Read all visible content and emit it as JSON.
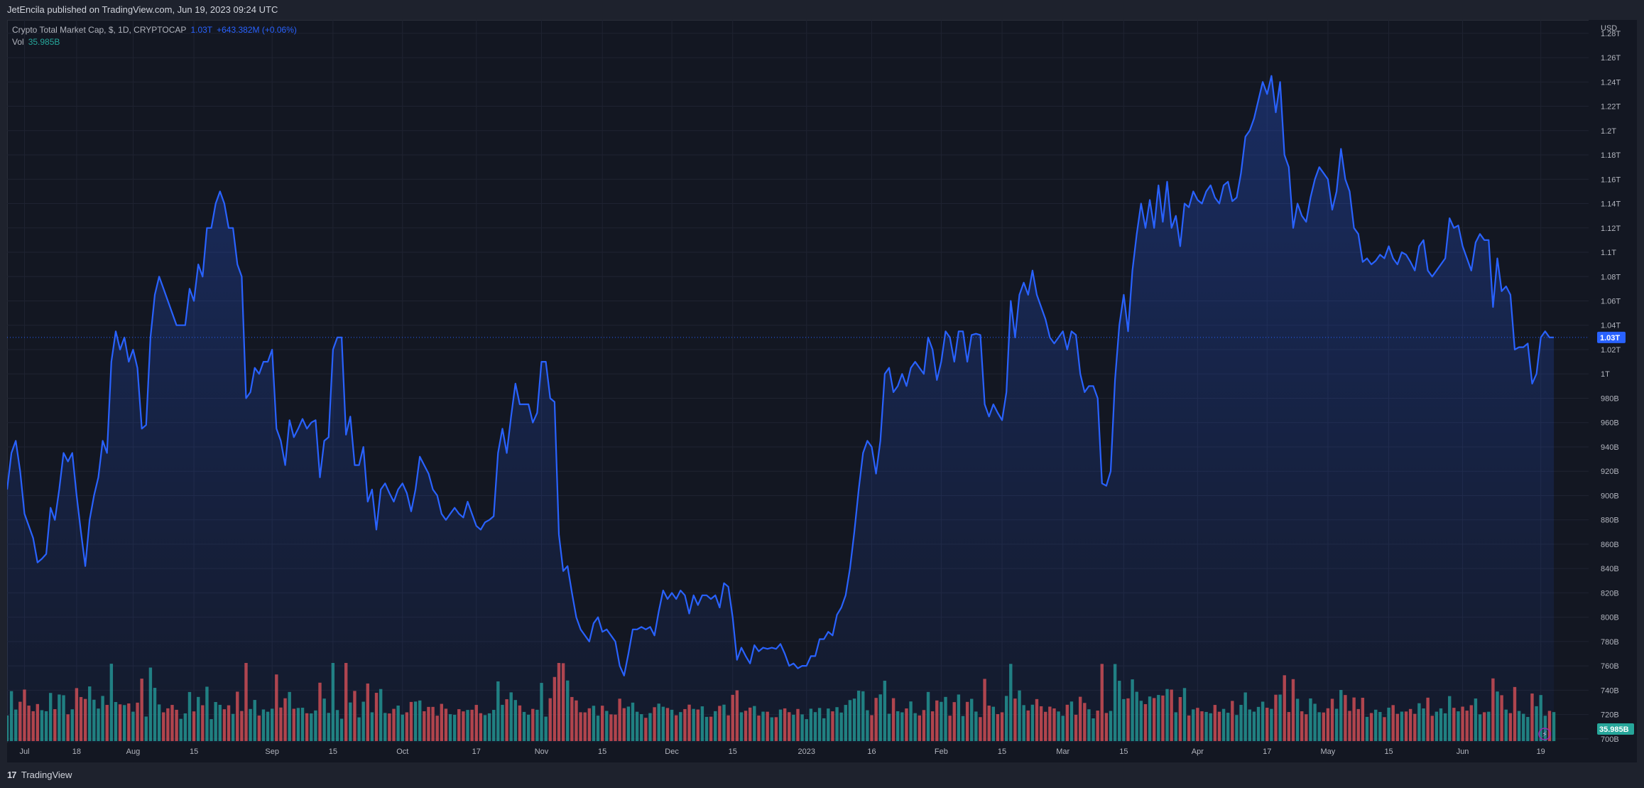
{
  "header": {
    "published": "JetEncila published on TradingView.com, Jun 19, 2023 09:24 UTC"
  },
  "legend": {
    "symbol": "Crypto Total Market Cap, $, 1D, CRYPTOCAP",
    "price": "1.03T",
    "change": "+643.382M (+0.06%)",
    "vol_label": "Vol",
    "vol_value": "35.985B"
  },
  "footer": {
    "brand": "TradingView",
    "logo_glyph": "17"
  },
  "colors": {
    "line": "#2962ff",
    "area_top": "#2962ff",
    "vol_up": "#26a69a",
    "vol_down": "#ef5350",
    "grid": "#1f2331",
    "text": "#b2b5be",
    "price_tag": "#2962ff",
    "vol_tag": "#26a69a"
  },
  "chart_data": {
    "type": "area",
    "currency_label": "USD",
    "y_ticks": [
      "1.28T",
      "1.26T",
      "1.24T",
      "1.22T",
      "1.2T",
      "1.18T",
      "1.16T",
      "1.14T",
      "1.12T",
      "1.1T",
      "1.08T",
      "1.06T",
      "1.04T",
      "1.02T",
      "1T",
      "980B",
      "960B",
      "940B",
      "920B",
      "900B",
      "880B",
      "860B",
      "840B",
      "820B",
      "800B",
      "780B",
      "760B",
      "740B",
      "720B",
      "700B"
    ],
    "y_tick_values": [
      1280,
      1260,
      1240,
      1220,
      1200,
      1180,
      1160,
      1140,
      1120,
      1100,
      1080,
      1060,
      1040,
      1020,
      1000,
      980,
      960,
      940,
      920,
      900,
      880,
      860,
      840,
      820,
      800,
      780,
      760,
      740,
      720,
      700
    ],
    "y_unit": "B",
    "ylim": [
      697,
      1291
    ],
    "x_labels": [
      {
        "label": "Jul",
        "day": 4
      },
      {
        "label": "18",
        "day": 16
      },
      {
        "label": "Aug",
        "day": 29
      },
      {
        "label": "15",
        "day": 43
      },
      {
        "label": "Sep",
        "day": 61
      },
      {
        "label": "15",
        "day": 75
      },
      {
        "label": "Oct",
        "day": 91
      },
      {
        "label": "17",
        "day": 108
      },
      {
        "label": "Nov",
        "day": 123
      },
      {
        "label": "15",
        "day": 137
      },
      {
        "label": "Dec",
        "day": 153
      },
      {
        "label": "15",
        "day": 167
      },
      {
        "label": "2023",
        "day": 184
      },
      {
        "label": "16",
        "day": 199
      },
      {
        "label": "Feb",
        "day": 215
      },
      {
        "label": "15",
        "day": 229
      },
      {
        "label": "Mar",
        "day": 243
      },
      {
        "label": "15",
        "day": 257
      },
      {
        "label": "Apr",
        "day": 274
      },
      {
        "label": "17",
        "day": 290
      },
      {
        "label": "May",
        "day": 304
      },
      {
        "label": "15",
        "day": 318
      },
      {
        "label": "Jun",
        "day": 335
      },
      {
        "label": "19",
        "day": 353
      }
    ],
    "x_range": [
      0,
      364
    ],
    "price_points": [
      [
        0,
        905
      ],
      [
        1,
        935
      ],
      [
        2,
        945
      ],
      [
        3,
        920
      ],
      [
        4,
        885
      ],
      [
        5,
        875
      ],
      [
        6,
        865
      ],
      [
        7,
        845
      ],
      [
        8,
        848
      ],
      [
        9,
        852
      ],
      [
        10,
        890
      ],
      [
        11,
        880
      ],
      [
        12,
        905
      ],
      [
        13,
        935
      ],
      [
        14,
        928
      ],
      [
        15,
        935
      ],
      [
        16,
        900
      ],
      [
        17,
        870
      ],
      [
        18,
        842
      ],
      [
        19,
        880
      ],
      [
        20,
        900
      ],
      [
        21,
        915
      ],
      [
        22,
        945
      ],
      [
        23,
        935
      ],
      [
        24,
        1010
      ],
      [
        25,
        1035
      ],
      [
        26,
        1020
      ],
      [
        27,
        1030
      ],
      [
        28,
        1010
      ],
      [
        29,
        1020
      ],
      [
        30,
        1005
      ],
      [
        31,
        955
      ],
      [
        32,
        958
      ],
      [
        33,
        1030
      ],
      [
        34,
        1065
      ],
      [
        35,
        1080
      ],
      [
        36,
        1070
      ],
      [
        37,
        1060
      ],
      [
        38,
        1050
      ],
      [
        39,
        1040
      ],
      [
        40,
        1040
      ],
      [
        41,
        1040
      ],
      [
        42,
        1070
      ],
      [
        43,
        1060
      ],
      [
        44,
        1090
      ],
      [
        45,
        1080
      ],
      [
        46,
        1120
      ],
      [
        47,
        1120
      ],
      [
        48,
        1140
      ],
      [
        49,
        1150
      ],
      [
        50,
        1140
      ],
      [
        51,
        1120
      ],
      [
        52,
        1120
      ],
      [
        53,
        1090
      ],
      [
        54,
        1080
      ],
      [
        55,
        980
      ],
      [
        56,
        985
      ],
      [
        57,
        1005
      ],
      [
        58,
        1000
      ],
      [
        59,
        1010
      ],
      [
        60,
        1010
      ],
      [
        61,
        1020
      ],
      [
        62,
        955
      ],
      [
        63,
        945
      ],
      [
        64,
        925
      ],
      [
        65,
        962
      ],
      [
        66,
        948
      ],
      [
        67,
        955
      ],
      [
        68,
        963
      ],
      [
        69,
        955
      ],
      [
        70,
        960
      ],
      [
        71,
        962
      ],
      [
        72,
        915
      ],
      [
        73,
        945
      ],
      [
        74,
        948
      ],
      [
        75,
        1020
      ],
      [
        76,
        1030
      ],
      [
        77,
        1030
      ],
      [
        78,
        950
      ],
      [
        79,
        965
      ],
      [
        80,
        925
      ],
      [
        81,
        925
      ],
      [
        82,
        940
      ],
      [
        83,
        895
      ],
      [
        84,
        905
      ],
      [
        85,
        872
      ],
      [
        86,
        905
      ],
      [
        87,
        910
      ],
      [
        88,
        902
      ],
      [
        89,
        895
      ],
      [
        90,
        905
      ],
      [
        91,
        910
      ],
      [
        92,
        902
      ],
      [
        93,
        887
      ],
      [
        94,
        905
      ],
      [
        95,
        932
      ],
      [
        96,
        925
      ],
      [
        97,
        918
      ],
      [
        98,
        905
      ],
      [
        99,
        900
      ],
      [
        100,
        885
      ],
      [
        101,
        880
      ],
      [
        102,
        885
      ],
      [
        103,
        890
      ],
      [
        104,
        885
      ],
      [
        105,
        882
      ],
      [
        106,
        895
      ],
      [
        107,
        885
      ],
      [
        108,
        875
      ],
      [
        109,
        872
      ],
      [
        110,
        878
      ],
      [
        111,
        880
      ],
      [
        112,
        883
      ],
      [
        113,
        935
      ],
      [
        114,
        955
      ],
      [
        115,
        935
      ],
      [
        116,
        965
      ],
      [
        117,
        992
      ],
      [
        118,
        975
      ],
      [
        119,
        975
      ],
      [
        120,
        975
      ],
      [
        121,
        960
      ],
      [
        122,
        968
      ],
      [
        123,
        1010
      ],
      [
        124,
        1010
      ],
      [
        125,
        980
      ],
      [
        126,
        977
      ],
      [
        127,
        868
      ],
      [
        128,
        838
      ],
      [
        129,
        842
      ],
      [
        130,
        820
      ],
      [
        131,
        800
      ],
      [
        132,
        790
      ],
      [
        133,
        785
      ],
      [
        134,
        780
      ],
      [
        135,
        795
      ],
      [
        136,
        800
      ],
      [
        137,
        788
      ],
      [
        138,
        790
      ],
      [
        139,
        785
      ],
      [
        140,
        780
      ],
      [
        141,
        760
      ],
      [
        142,
        752
      ],
      [
        143,
        770
      ],
      [
        144,
        790
      ],
      [
        145,
        790
      ],
      [
        146,
        792
      ],
      [
        147,
        790
      ],
      [
        148,
        792
      ],
      [
        149,
        785
      ],
      [
        150,
        805
      ],
      [
        151,
        822
      ],
      [
        152,
        815
      ],
      [
        153,
        820
      ],
      [
        154,
        815
      ],
      [
        155,
        822
      ],
      [
        156,
        818
      ],
      [
        157,
        803
      ],
      [
        158,
        818
      ],
      [
        159,
        810
      ],
      [
        160,
        818
      ],
      [
        161,
        818
      ],
      [
        162,
        815
      ],
      [
        163,
        818
      ],
      [
        164,
        808
      ],
      [
        165,
        828
      ],
      [
        166,
        825
      ],
      [
        167,
        800
      ],
      [
        168,
        765
      ],
      [
        169,
        775
      ],
      [
        170,
        768
      ],
      [
        171,
        762
      ],
      [
        172,
        777
      ],
      [
        173,
        772
      ],
      [
        174,
        775
      ],
      [
        175,
        774
      ],
      [
        176,
        775
      ],
      [
        177,
        774
      ],
      [
        178,
        778
      ],
      [
        179,
        770
      ],
      [
        180,
        760
      ],
      [
        181,
        762
      ],
      [
        182,
        758
      ],
      [
        183,
        760
      ],
      [
        184,
        760
      ],
      [
        185,
        768
      ],
      [
        186,
        768
      ],
      [
        187,
        782
      ],
      [
        188,
        782
      ],
      [
        189,
        788
      ],
      [
        190,
        785
      ],
      [
        191,
        802
      ],
      [
        192,
        808
      ],
      [
        193,
        818
      ],
      [
        194,
        840
      ],
      [
        195,
        870
      ],
      [
        196,
        905
      ],
      [
        197,
        935
      ],
      [
        198,
        945
      ],
      [
        199,
        940
      ],
      [
        200,
        918
      ],
      [
        201,
        945
      ],
      [
        202,
        1000
      ],
      [
        203,
        1005
      ],
      [
        204,
        985
      ],
      [
        205,
        990
      ],
      [
        206,
        1000
      ],
      [
        207,
        990
      ],
      [
        208,
        1005
      ],
      [
        209,
        1010
      ],
      [
        210,
        1005
      ],
      [
        211,
        1000
      ],
      [
        212,
        1030
      ],
      [
        213,
        1020
      ],
      [
        214,
        995
      ],
      [
        215,
        1010
      ],
      [
        216,
        1035
      ],
      [
        217,
        1030
      ],
      [
        218,
        1010
      ],
      [
        219,
        1035
      ],
      [
        220,
        1035
      ],
      [
        221,
        1010
      ],
      [
        222,
        1032
      ],
      [
        223,
        1033
      ],
      [
        224,
        1032
      ],
      [
        225,
        975
      ],
      [
        226,
        965
      ],
      [
        227,
        975
      ],
      [
        228,
        968
      ],
      [
        229,
        962
      ],
      [
        230,
        985
      ],
      [
        231,
        1060
      ],
      [
        232,
        1030
      ],
      [
        233,
        1065
      ],
      [
        234,
        1075
      ],
      [
        235,
        1065
      ],
      [
        236,
        1085
      ],
      [
        237,
        1065
      ],
      [
        238,
        1055
      ],
      [
        239,
        1045
      ],
      [
        240,
        1030
      ],
      [
        241,
        1025
      ],
      [
        242,
        1030
      ],
      [
        243,
        1035
      ],
      [
        244,
        1020
      ],
      [
        245,
        1035
      ],
      [
        246,
        1032
      ],
      [
        247,
        1000
      ],
      [
        248,
        985
      ],
      [
        249,
        990
      ],
      [
        250,
        990
      ],
      [
        251,
        980
      ],
      [
        252,
        910
      ],
      [
        253,
        908
      ],
      [
        254,
        920
      ],
      [
        255,
        995
      ],
      [
        256,
        1040
      ],
      [
        257,
        1065
      ],
      [
        258,
        1035
      ],
      [
        259,
        1085
      ],
      [
        260,
        1115
      ],
      [
        261,
        1140
      ],
      [
        262,
        1120
      ],
      [
        263,
        1143
      ],
      [
        264,
        1120
      ],
      [
        265,
        1155
      ],
      [
        266,
        1125
      ],
      [
        267,
        1158
      ],
      [
        268,
        1120
      ],
      [
        269,
        1130
      ],
      [
        270,
        1105
      ],
      [
        271,
        1140
      ],
      [
        272,
        1137
      ],
      [
        273,
        1150
      ],
      [
        274,
        1143
      ],
      [
        275,
        1140
      ],
      [
        276,
        1150
      ],
      [
        277,
        1155
      ],
      [
        278,
        1145
      ],
      [
        279,
        1140
      ],
      [
        280,
        1155
      ],
      [
        281,
        1158
      ],
      [
        282,
        1142
      ],
      [
        283,
        1145
      ],
      [
        284,
        1165
      ],
      [
        285,
        1195
      ],
      [
        286,
        1200
      ],
      [
        287,
        1210
      ],
      [
        288,
        1225
      ],
      [
        289,
        1240
      ],
      [
        290,
        1230
      ],
      [
        291,
        1245
      ],
      [
        292,
        1215
      ],
      [
        293,
        1240
      ],
      [
        294,
        1180
      ],
      [
        295,
        1170
      ],
      [
        296,
        1120
      ],
      [
        297,
        1140
      ],
      [
        298,
        1130
      ],
      [
        299,
        1125
      ],
      [
        300,
        1145
      ],
      [
        301,
        1160
      ],
      [
        302,
        1170
      ],
      [
        303,
        1165
      ],
      [
        304,
        1160
      ],
      [
        305,
        1135
      ],
      [
        306,
        1150
      ],
      [
        307,
        1185
      ],
      [
        308,
        1160
      ],
      [
        309,
        1150
      ],
      [
        310,
        1120
      ],
      [
        311,
        1115
      ],
      [
        312,
        1092
      ],
      [
        313,
        1095
      ],
      [
        314,
        1090
      ],
      [
        315,
        1093
      ],
      [
        316,
        1098
      ],
      [
        317,
        1095
      ],
      [
        318,
        1105
      ],
      [
        319,
        1095
      ],
      [
        320,
        1090
      ],
      [
        321,
        1100
      ],
      [
        322,
        1098
      ],
      [
        323,
        1092
      ],
      [
        324,
        1085
      ],
      [
        325,
        1105
      ],
      [
        326,
        1110
      ],
      [
        327,
        1085
      ],
      [
        328,
        1080
      ],
      [
        329,
        1085
      ],
      [
        330,
        1090
      ],
      [
        331,
        1095
      ],
      [
        332,
        1128
      ],
      [
        333,
        1120
      ],
      [
        334,
        1122
      ],
      [
        335,
        1105
      ],
      [
        336,
        1095
      ],
      [
        337,
        1085
      ],
      [
        338,
        1108
      ],
      [
        339,
        1115
      ],
      [
        340,
        1110
      ],
      [
        341,
        1110
      ],
      [
        342,
        1055
      ],
      [
        343,
        1095
      ],
      [
        344,
        1068
      ],
      [
        345,
        1072
      ],
      [
        346,
        1065
      ],
      [
        347,
        1020
      ],
      [
        348,
        1022
      ],
      [
        349,
        1022
      ],
      [
        350,
        1025
      ],
      [
        351,
        992
      ],
      [
        352,
        1000
      ],
      [
        353,
        1030
      ],
      [
        354,
        1035
      ],
      [
        355,
        1030
      ],
      [
        356,
        1030
      ]
    ],
    "last_price_value": 1030,
    "last_price_label": "1.03T",
    "volume_vmax": 250,
    "volume_last_label": "35.985B"
  }
}
